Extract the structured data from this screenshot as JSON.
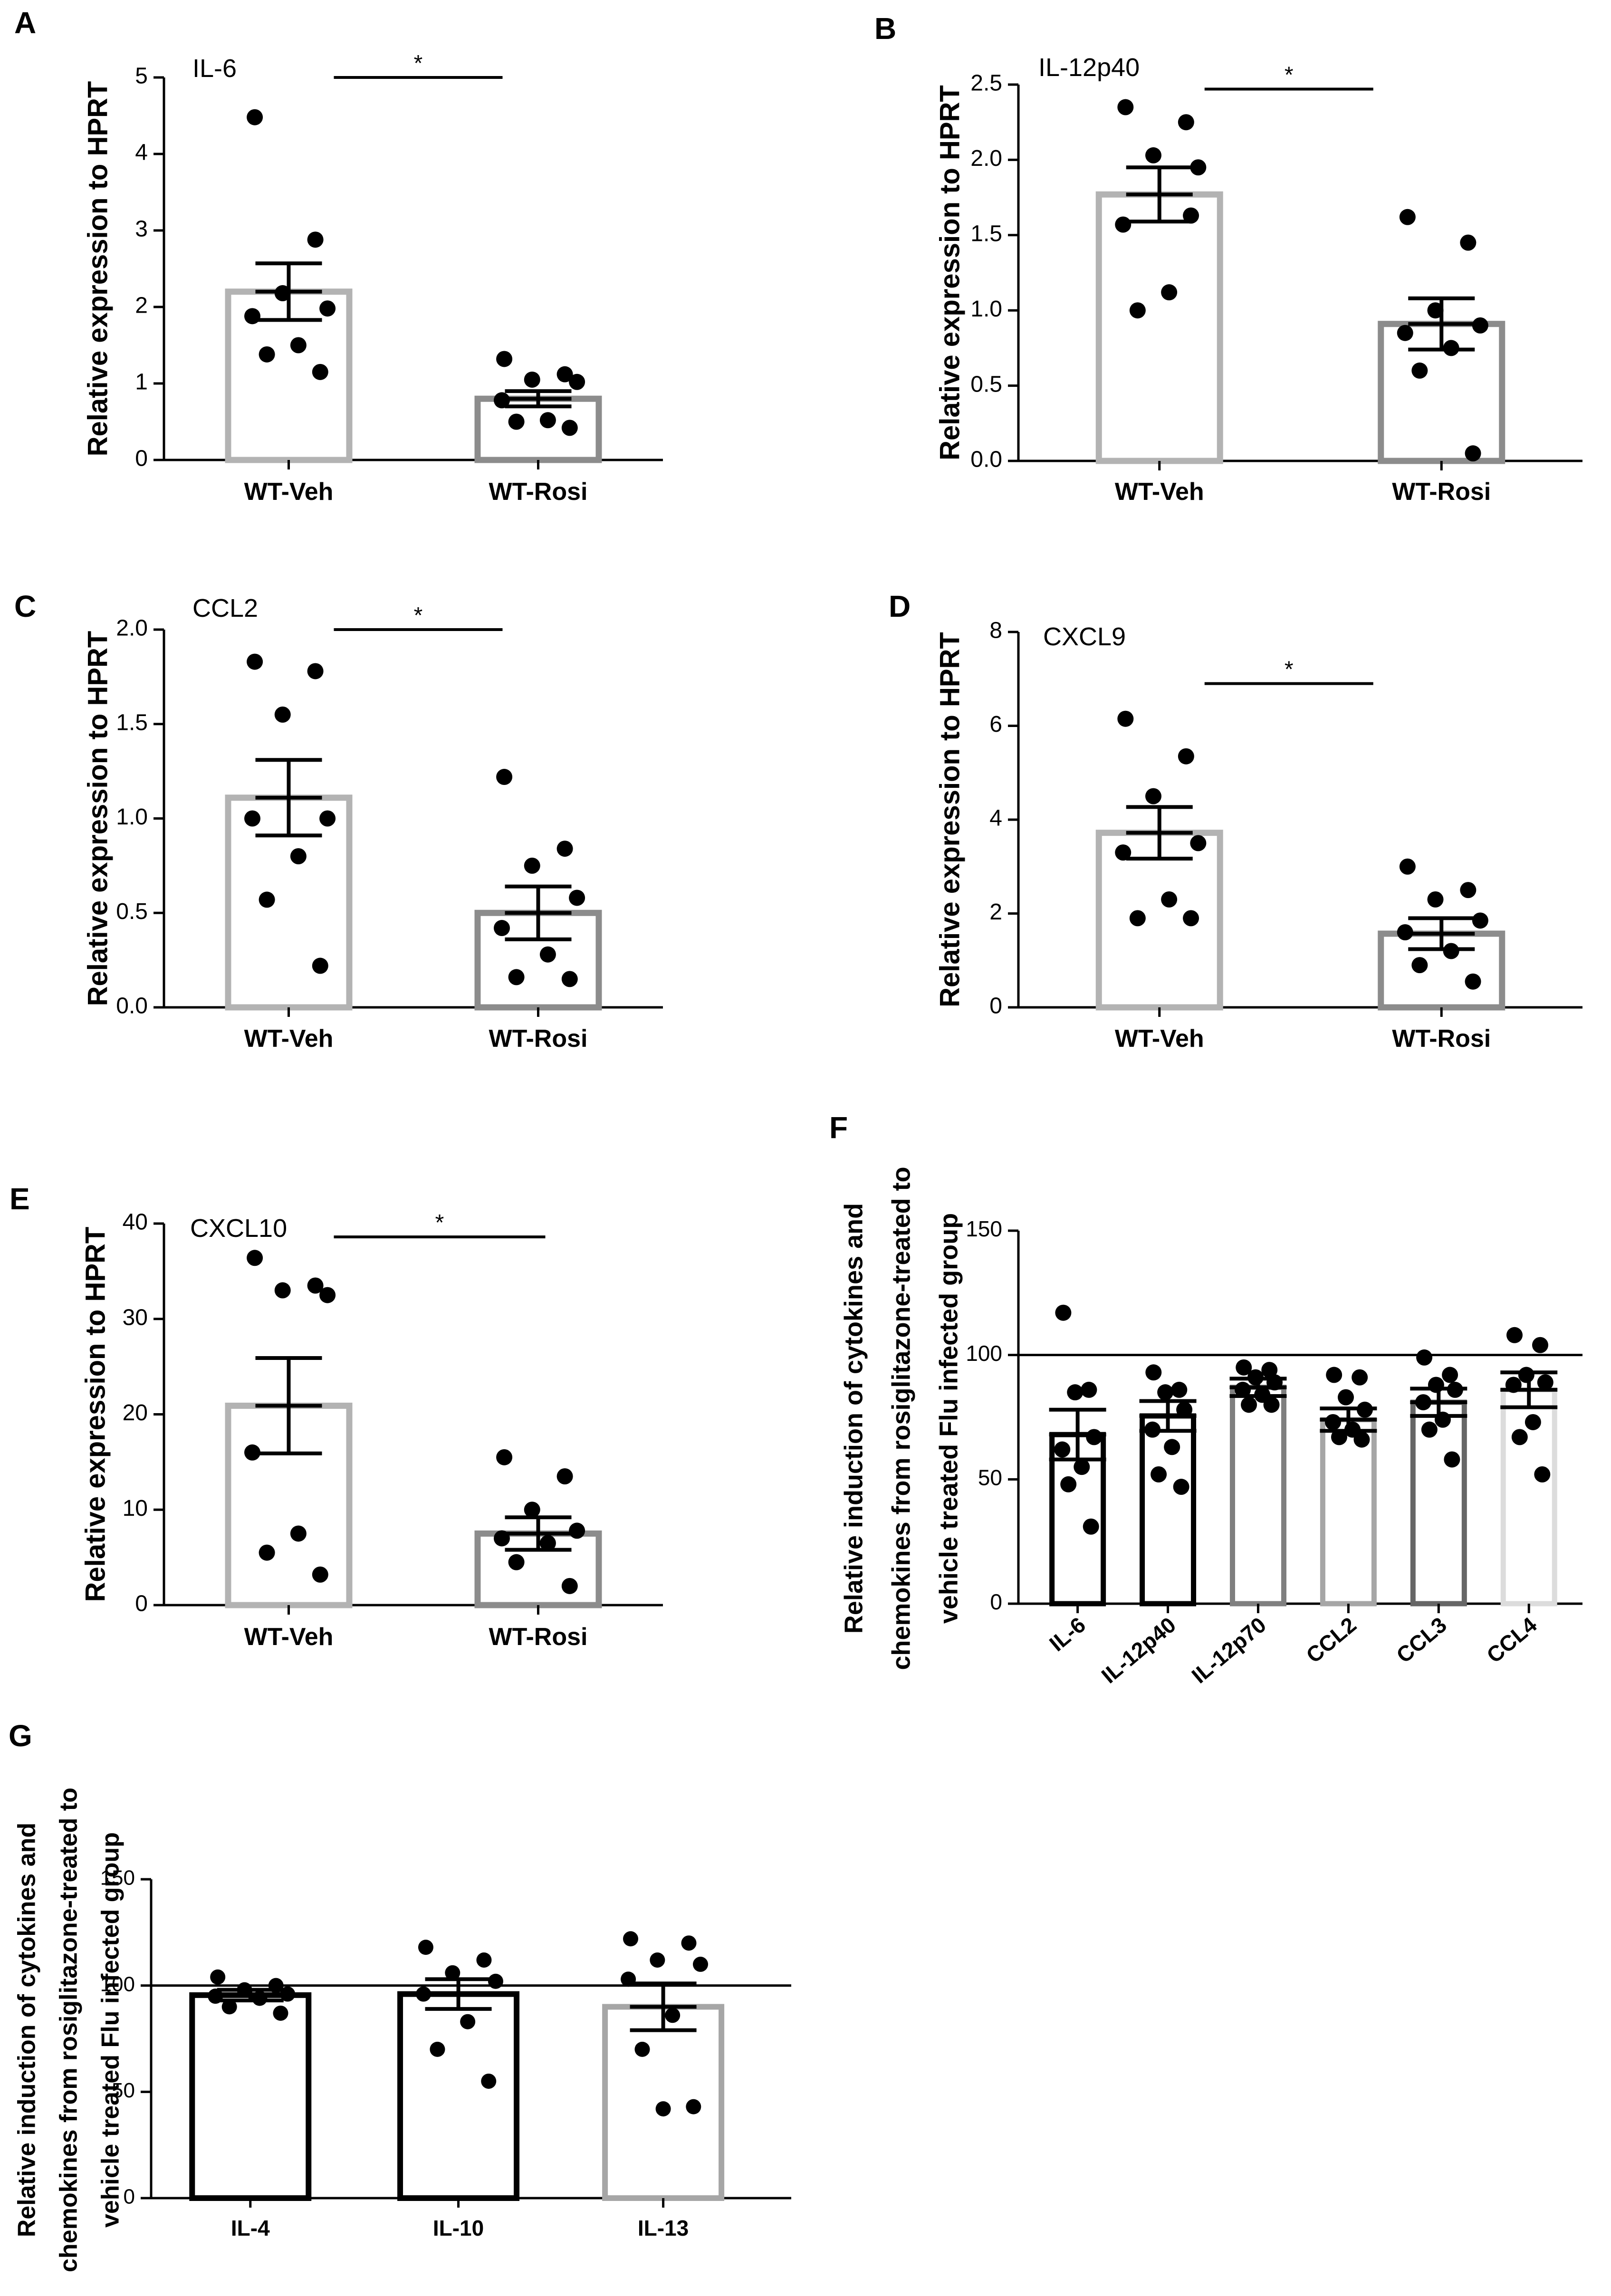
{
  "figure": {
    "y_axis_label_hprt": "Relative expression to HPRT",
    "y_axis_label_induction_lines": [
      "Relative induction of cytokines and",
      "chemokines from rosiglitazone-treated to",
      "vehicle treated Flu infected group"
    ],
    "significance_mark": "*"
  },
  "chart_data": [
    {
      "panel": "A",
      "type": "bar",
      "gene": "IL-6",
      "ylabel": "Relative expression to HPRT",
      "categories": [
        "WT-Veh",
        "WT-Rosi"
      ],
      "ylim": [
        0,
        5
      ],
      "yticks": [
        0,
        1,
        2,
        3,
        4,
        5
      ],
      "bar_colors": [
        "#b3b3b3",
        "#8c8c8c"
      ],
      "means": [
        2.2,
        0.8
      ],
      "sem": [
        0.37,
        0.1
      ],
      "points": [
        [
          4.48,
          2.88,
          2.18,
          1.98,
          1.88,
          1.5,
          1.38,
          1.15
        ],
        [
          1.32,
          1.12,
          1.05,
          1.02,
          0.78,
          0.52,
          0.5,
          0.42
        ]
      ],
      "significance": [
        {
          "from": 0,
          "to": 1,
          "y": 5.0,
          "label": "*"
        }
      ],
      "reference_line": null
    },
    {
      "panel": "B",
      "type": "bar",
      "gene": "IL-12p40",
      "ylabel": "Relative expression to HPRT",
      "categories": [
        "WT-Veh",
        "WT-Rosi"
      ],
      "ylim": [
        0,
        2.5
      ],
      "yticks": [
        0.0,
        0.5,
        1.0,
        1.5,
        2.0,
        2.5
      ],
      "bar_colors": [
        "#b3b3b3",
        "#8c8c8c"
      ],
      "means": [
        1.77,
        0.91
      ],
      "sem": [
        0.18,
        0.17
      ],
      "points": [
        [
          2.35,
          2.25,
          2.03,
          1.95,
          1.57,
          1.12,
          1.0,
          1.63
        ],
        [
          1.62,
          1.45,
          1.0,
          0.9,
          0.85,
          0.75,
          0.6,
          0.05
        ]
      ],
      "significance": [
        {
          "from": 0,
          "to": 1,
          "y": 2.47,
          "label": "*"
        }
      ],
      "reference_line": null
    },
    {
      "panel": "C",
      "type": "bar",
      "gene": "CCL2",
      "ylabel": "Relative expression to HPRT",
      "categories": [
        "WT-Veh",
        "WT-Rosi"
      ],
      "ylim": [
        0,
        2.0
      ],
      "yticks": [
        0.0,
        0.5,
        1.0,
        1.5,
        2.0
      ],
      "bar_colors": [
        "#b3b3b3",
        "#8c8c8c"
      ],
      "means": [
        1.11,
        0.5
      ],
      "sem": [
        0.2,
        0.14
      ],
      "points": [
        [
          1.83,
          1.78,
          1.55,
          1.0,
          1.0,
          0.8,
          0.57,
          0.22
        ],
        [
          1.22,
          0.84,
          0.75,
          0.58,
          0.42,
          0.28,
          0.16,
          0.15
        ]
      ],
      "significance": [
        {
          "from": 0,
          "to": 1,
          "y": 2.0,
          "label": "*"
        }
      ],
      "reference_line": null
    },
    {
      "panel": "D",
      "type": "bar",
      "gene": "CXCL9",
      "ylabel": "Relative expression to HPRT",
      "categories": [
        "WT-Veh",
        "WT-Rosi"
      ],
      "ylim": [
        0,
        8
      ],
      "yticks": [
        0,
        2,
        4,
        6,
        8
      ],
      "bar_colors": [
        "#b3b3b3",
        "#8c8c8c"
      ],
      "means": [
        3.72,
        1.57
      ],
      "sem": [
        0.55,
        0.33
      ],
      "points": [
        [
          6.15,
          5.35,
          4.5,
          3.5,
          3.3,
          2.3,
          1.9,
          1.9
        ],
        [
          3.0,
          2.5,
          2.3,
          1.85,
          1.6,
          1.2,
          0.9,
          0.55
        ]
      ],
      "significance": [
        {
          "from": 0,
          "to": 1,
          "y": 6.9,
          "label": "*"
        }
      ],
      "reference_line": null
    },
    {
      "panel": "E",
      "type": "bar",
      "gene": "CXCL10",
      "ylabel": "Relative expression to HPRT",
      "categories": [
        "WT-Veh",
        "WT-Rosi"
      ],
      "ylim": [
        0,
        40
      ],
      "yticks": [
        0,
        10,
        20,
        30,
        40
      ],
      "bar_colors": [
        "#b3b3b3",
        "#8c8c8c"
      ],
      "means": [
        20.9,
        7.5
      ],
      "sem": [
        5.0,
        1.7
      ],
      "points": [
        [
          36.4,
          33.5,
          33.0,
          32.5,
          16.0,
          7.5,
          5.5,
          3.2
        ],
        [
          15.5,
          13.5,
          10.0,
          7.8,
          7.0,
          6.5,
          4.5,
          2.0
        ]
      ],
      "significance": [
        {
          "from": 0,
          "to": 1,
          "y": 38.6,
          "label": "*"
        }
      ],
      "reference_line": null
    },
    {
      "panel": "F",
      "type": "bar",
      "gene": "",
      "ylabel": "Relative induction of cytokines and chemokines from rosiglitazone-treated to vehicle treated Flu infected group",
      "categories": [
        "IL-6",
        "IL-12p40",
        "IL-12p70",
        "CCL2",
        "CCL3",
        "CCL4"
      ],
      "ylim": [
        0,
        150
      ],
      "yticks": [
        0,
        50,
        100,
        150
      ],
      "bar_colors": [
        "#000000",
        "#000000",
        "#7f7f7f",
        "#a6a6a6",
        "#666666",
        "#dcdcdc"
      ],
      "means": [
        68,
        75.5,
        87,
        74,
        81,
        86
      ],
      "sem": [
        10,
        6,
        3.5,
        4.5,
        5.5,
        7
      ],
      "points": [
        [
          117,
          86,
          85,
          67,
          62,
          55,
          48,
          31
        ],
        [
          93,
          86,
          85,
          78,
          70,
          63,
          52,
          47
        ],
        [
          95,
          94,
          91,
          89,
          86,
          84,
          80,
          80
        ],
        [
          92,
          91,
          83,
          78,
          73,
          70,
          67,
          66
        ],
        [
          99,
          92,
          88,
          86,
          81,
          74,
          70,
          58
        ],
        [
          108,
          104,
          92,
          89,
          88,
          73,
          67,
          52
        ]
      ],
      "significance": [],
      "reference_line": 100
    },
    {
      "panel": "G",
      "type": "bar",
      "gene": "",
      "ylabel": "Relative induction of cytokines and chemokines from rosiglitazone-treated to vehicle treated Flu infected group",
      "categories": [
        "IL-4",
        "IL-10",
        "IL-13"
      ],
      "ylim": [
        0,
        150
      ],
      "yticks": [
        0,
        50,
        100,
        150
      ],
      "bar_colors": [
        "#000000",
        "#000000",
        "#a6a6a6"
      ],
      "means": [
        95.5,
        96,
        90
      ],
      "sem": [
        2.5,
        7,
        11
      ],
      "points": [
        [
          104,
          100,
          98,
          96,
          95,
          94,
          90,
          87
        ],
        [
          118,
          112,
          106,
          102,
          96,
          83,
          70,
          55
        ],
        [
          122,
          120,
          112,
          110,
          103,
          86,
          70,
          43,
          42
        ]
      ],
      "significance": [],
      "reference_line": 100
    }
  ]
}
